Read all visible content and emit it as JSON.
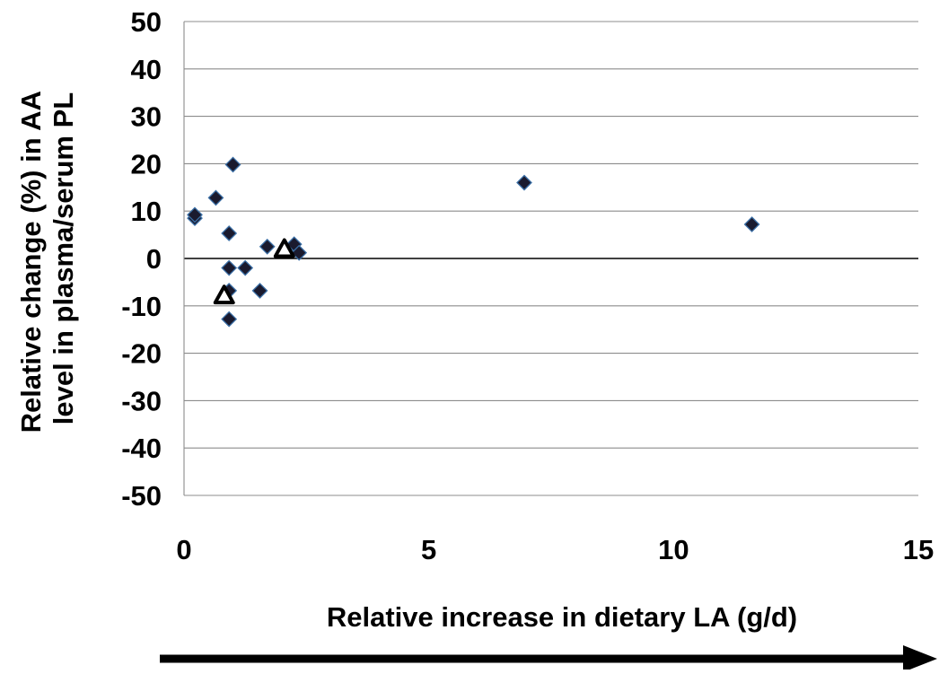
{
  "chart_data": {
    "type": "scatter",
    "title": "",
    "xlabel": "Relative increase in dietary LA (g/d)",
    "ylabel_lines": [
      "Relative change (%) in AA",
      "level in plasma/serum PL"
    ],
    "xlim": [
      0,
      15
    ],
    "ylim": [
      -50,
      50
    ],
    "x_ticks": [
      0,
      5,
      10,
      15
    ],
    "y_ticks": [
      50,
      40,
      30,
      20,
      10,
      0,
      -10,
      -20,
      -30,
      -40,
      -50
    ],
    "x_tick_labels": [
      "0",
      "5",
      "10",
      "15"
    ],
    "y_tick_labels": [
      "50",
      "40",
      "30",
      "20",
      "10",
      "0",
      "-10",
      "-20",
      "-30",
      "-40",
      "-50"
    ],
    "grid": "horizontal",
    "legend": "none",
    "series": [
      {
        "marker": "diamond",
        "color": "#1a1a2e",
        "edge_color": "#3a6ea5",
        "points": [
          {
            "x": 0.22,
            "y": 8.5
          },
          {
            "x": 0.22,
            "y": 9.2
          },
          {
            "x": 0.65,
            "y": 12.8
          },
          {
            "x": 1.0,
            "y": 19.8
          },
          {
            "x": 0.92,
            "y": 5.3
          },
          {
            "x": 0.92,
            "y": -2.0
          },
          {
            "x": 0.92,
            "y": -6.8
          },
          {
            "x": 0.92,
            "y": -12.8
          },
          {
            "x": 1.25,
            "y": -2.0
          },
          {
            "x": 1.55,
            "y": -6.8
          },
          {
            "x": 1.7,
            "y": 2.5
          },
          {
            "x": 2.25,
            "y": 3.0
          },
          {
            "x": 2.35,
            "y": 1.2
          },
          {
            "x": 6.95,
            "y": 16.0
          },
          {
            "x": 11.6,
            "y": 7.2
          }
        ]
      },
      {
        "marker": "triangle",
        "color": "#ffffff",
        "edge_color": "#000000",
        "points": [
          {
            "x": 0.82,
            "y": -7.8
          },
          {
            "x": 2.05,
            "y": 2.0
          }
        ]
      }
    ],
    "arrow": {
      "direction": "right",
      "color": "#000000"
    }
  }
}
